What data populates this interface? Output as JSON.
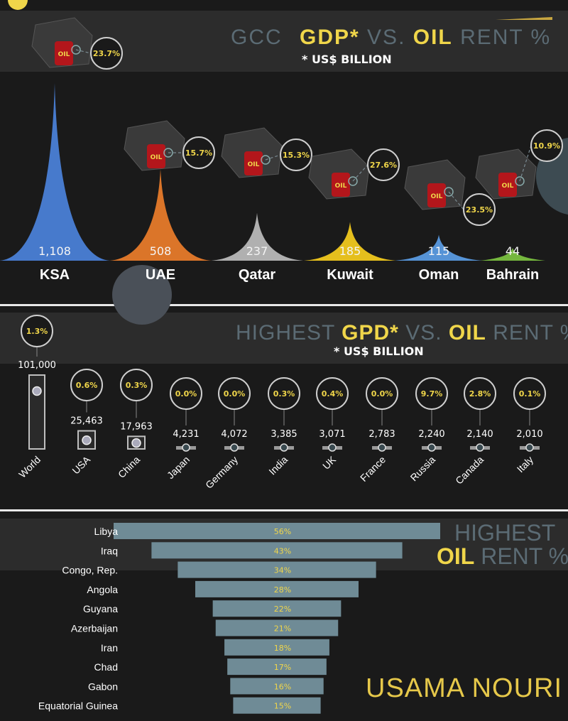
{
  "gcc": {
    "title_parts": [
      "GCC",
      "GDP*",
      "VS.",
      "OIL",
      "RENT %"
    ],
    "subtitle": "* US$ BILLION",
    "oil_label": "OIL",
    "chart_data": {
      "type": "area",
      "categories": [
        "KSA",
        "UAE",
        "Qatar",
        "Kuwait",
        "Oman",
        "Bahrain"
      ],
      "gdp": [
        1108,
        508,
        237,
        185,
        115,
        44
      ],
      "gdp_labels": [
        "1,108",
        "508",
        "237",
        "185",
        "115",
        "44"
      ],
      "oil_rent": [
        "23.7%",
        "15.7%",
        "15.3%",
        "27.6%",
        "23.5%",
        "10.9%"
      ],
      "colors": [
        "#4a7fd6",
        "#e67a2a",
        "#b8b8b8",
        "#f0c81e",
        "#5a9ae0",
        "#7ac040"
      ]
    }
  },
  "highest": {
    "title_parts": [
      "HIGHEST",
      "GPD*",
      "VS.",
      "OIL",
      "RENT %"
    ],
    "subtitle": "* US$ BILLION",
    "chart_data": {
      "type": "bar",
      "categories": [
        "World",
        "USA",
        "China",
        "Japan",
        "Germany",
        "India",
        "UK",
        "France",
        "Russia",
        "Canada",
        "Italy"
      ],
      "gdp": [
        101000,
        25463,
        17963,
        4231,
        4072,
        3385,
        3071,
        2783,
        2240,
        2140,
        2010
      ],
      "gdp_labels": [
        "101,000",
        "25,463",
        "17,963",
        "4,231",
        "4,072",
        "3,385",
        "3,071",
        "2,783",
        "2,240",
        "2,140",
        "2,010"
      ],
      "oil_rent": [
        "1.3%",
        "0.6%",
        "0.3%",
        "0.0%",
        "0.0%",
        "0.3%",
        "0.4%",
        "0.0%",
        "9.7%",
        "2.8%",
        "0.1%"
      ]
    }
  },
  "oilrent": {
    "title_line1": "HIGHEST",
    "title_line2_parts": [
      "OIL",
      "RENT %"
    ],
    "chart_data": {
      "type": "bar",
      "categories": [
        "Libya",
        "Iraq",
        "Congo, Rep.",
        "Angola",
        "Guyana",
        "Azerbaijan",
        "Iran",
        "Chad",
        "Gabon",
        "Equatorial Guinea"
      ],
      "values": [
        56,
        43,
        34,
        28,
        22,
        21,
        18,
        17,
        16,
        15
      ],
      "value_labels": [
        "56%",
        "43%",
        "34%",
        "28%",
        "22%",
        "21%",
        "18%",
        "17%",
        "16%",
        "15%"
      ]
    }
  },
  "signature": "USAMA NOURI"
}
